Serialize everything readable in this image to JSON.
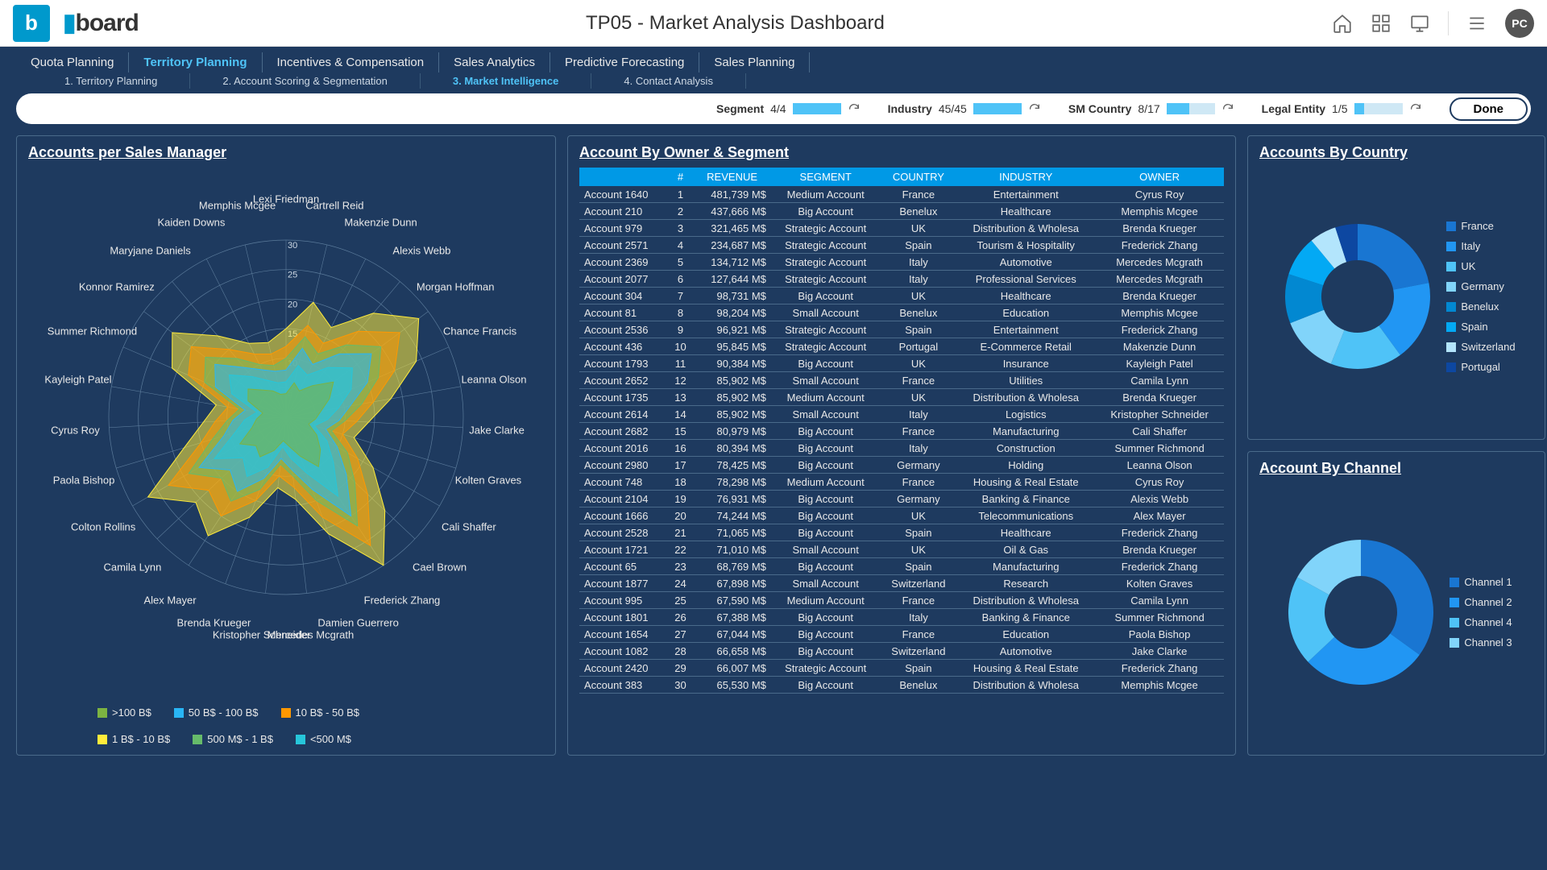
{
  "topbar": {
    "brand_b": "b",
    "brand_text": "board",
    "page_title": "TP05 - Market Analysis Dashboard",
    "avatar_initials": "PC"
  },
  "nav1": [
    {
      "label": "Quota Planning",
      "active": false
    },
    {
      "label": "Territory Planning",
      "active": true
    },
    {
      "label": "Incentives & Compensation",
      "active": false
    },
    {
      "label": "Sales Analytics",
      "active": false
    },
    {
      "label": "Predictive Forecasting",
      "active": false
    },
    {
      "label": "Sales Planning",
      "active": false
    }
  ],
  "nav2": [
    {
      "label": "1. Territory Planning",
      "active": false
    },
    {
      "label": "2. Account Scoring & Segmentation",
      "active": false
    },
    {
      "label": "3. Market Intelligence",
      "active": true
    },
    {
      "label": "4. Contact Analysis",
      "active": false
    }
  ],
  "filters": [
    {
      "label": "Segment",
      "count": "4/4",
      "fill": 1.0
    },
    {
      "label": "Industry",
      "count": "45/45",
      "fill": 1.0
    },
    {
      "label": "SM Country",
      "count": "8/17",
      "fill": 0.47
    },
    {
      "label": "Legal Entity",
      "count": "1/5",
      "fill": 0.2
    }
  ],
  "done_label": "Done",
  "panels": {
    "radar_title": "Accounts per Sales Manager",
    "table_title": "Account By Owner & Segment",
    "country_title": "Accounts By Country",
    "channel_title": "Account By Channel"
  },
  "radar": {
    "rings": [
      5,
      10,
      15,
      20,
      25,
      30
    ],
    "max": 30,
    "managers": [
      "Lexi Friedman",
      "Cartrell Reid",
      "Makenzie Dunn",
      "Alexis Webb",
      "Morgan Hoffman",
      "Chance Francis",
      "Leanna Olson",
      "Jake Clarke",
      "Kolten Graves",
      "Cali Shaffer",
      "Cael Brown",
      "Frederick Zhang",
      "Damien Guerrero",
      "Mercedes Mcgrath",
      "Kristopher Schneider",
      "Brenda Krueger",
      "Alex Mayer",
      "Camila Lynn",
      "Colton Rollins",
      "Paola Bishop",
      "Cyrus Roy",
      "Kayleigh Patel",
      "Summer Richmond",
      "Konnor Ramirez",
      "Maryjane Daniels",
      "Kaiden Downs",
      "Memphis Mcgee"
    ],
    "series": [
      {
        "name": ">100 B$",
        "color": "#7cb342",
        "values": [
          4,
          6,
          5,
          7,
          10,
          8,
          6,
          5,
          4,
          6,
          8,
          10,
          7,
          5,
          4,
          6,
          8,
          7,
          9,
          6,
          5,
          4,
          7,
          8,
          6,
          5,
          4
        ]
      },
      {
        "name": "50 B$ - 100 B$",
        "color": "#29b6f6",
        "values": [
          8,
          12,
          10,
          14,
          18,
          15,
          11,
          9,
          7,
          10,
          14,
          20,
          13,
          9,
          7,
          11,
          15,
          13,
          17,
          11,
          9,
          7,
          13,
          15,
          11,
          9,
          8
        ]
      },
      {
        "name": "10 B$ - 50 B$",
        "color": "#ff9800",
        "values": [
          12,
          16,
          14,
          19,
          24,
          20,
          15,
          12,
          10,
          14,
          19,
          26,
          18,
          12,
          10,
          15,
          20,
          18,
          23,
          15,
          12,
          10,
          18,
          20,
          15,
          12,
          11
        ]
      },
      {
        "name": "1 B$ - 10 B$",
        "color": "#ffeb3b",
        "values": [
          15,
          20,
          17,
          23,
          28,
          24,
          18,
          14,
          12,
          17,
          23,
          30,
          21,
          14,
          12,
          18,
          24,
          21,
          27,
          18,
          14,
          12,
          21,
          24,
          18,
          14,
          13
        ]
      },
      {
        "name": "500 M$ - 1 B$",
        "color": "#66bb6a",
        "values": [
          10,
          14,
          12,
          16,
          20,
          17,
          13,
          10,
          8,
          12,
          16,
          22,
          15,
          10,
          8,
          13,
          17,
          15,
          19,
          13,
          10,
          8,
          15,
          17,
          13,
          10,
          9
        ]
      },
      {
        "name": "<500 M$",
        "color": "#26c6da",
        "values": [
          6,
          9,
          8,
          11,
          14,
          12,
          9,
          7,
          5,
          8,
          11,
          16,
          10,
          7,
          5,
          9,
          12,
          10,
          14,
          9,
          7,
          5,
          10,
          12,
          9,
          7,
          6
        ]
      }
    ]
  },
  "table": {
    "columns": [
      "",
      "#",
      "REVENUE",
      "SEGMENT",
      "COUNTRY",
      "INDUSTRY",
      "OWNER"
    ],
    "rows": [
      [
        "Account 1640",
        "1",
        "481,739 M$",
        "Medium Account",
        "France",
        "Entertainment",
        "Cyrus Roy"
      ],
      [
        "Account 210",
        "2",
        "437,666 M$",
        "Big Account",
        "Benelux",
        "Healthcare",
        "Memphis Mcgee"
      ],
      [
        "Account 979",
        "3",
        "321,465 M$",
        "Strategic Account",
        "UK",
        "Distribution & Wholesa",
        "Brenda Krueger"
      ],
      [
        "Account 2571",
        "4",
        "234,687 M$",
        "Strategic Account",
        "Spain",
        "Tourism & Hospitality",
        "Frederick Zhang"
      ],
      [
        "Account 2369",
        "5",
        "134,712 M$",
        "Strategic Account",
        "Italy",
        "Automotive",
        "Mercedes Mcgrath"
      ],
      [
        "Account 2077",
        "6",
        "127,644 M$",
        "Strategic Account",
        "Italy",
        "Professional Services",
        "Mercedes Mcgrath"
      ],
      [
        "Account 304",
        "7",
        "98,731 M$",
        "Big Account",
        "UK",
        "Healthcare",
        "Brenda Krueger"
      ],
      [
        "Account 81",
        "8",
        "98,204 M$",
        "Small Account",
        "Benelux",
        "Education",
        "Memphis Mcgee"
      ],
      [
        "Account 2536",
        "9",
        "96,921 M$",
        "Strategic Account",
        "Spain",
        "Entertainment",
        "Frederick Zhang"
      ],
      [
        "Account 436",
        "10",
        "95,845 M$",
        "Strategic Account",
        "Portugal",
        "E-Commerce Retail",
        "Makenzie Dunn"
      ],
      [
        "Account 1793",
        "11",
        "90,384 M$",
        "Big Account",
        "UK",
        "Insurance",
        "Kayleigh Patel"
      ],
      [
        "Account 2652",
        "12",
        "85,902 M$",
        "Small Account",
        "France",
        "Utilities",
        "Camila Lynn"
      ],
      [
        "Account 1735",
        "13",
        "85,902 M$",
        "Medium Account",
        "UK",
        "Distribution & Wholesa",
        "Brenda Krueger"
      ],
      [
        "Account 2614",
        "14",
        "85,902 M$",
        "Small Account",
        "Italy",
        "Logistics",
        "Kristopher Schneider"
      ],
      [
        "Account 2682",
        "15",
        "80,979 M$",
        "Big Account",
        "France",
        "Manufacturing",
        "Cali Shaffer"
      ],
      [
        "Account 2016",
        "16",
        "80,394 M$",
        "Big Account",
        "Italy",
        "Construction",
        "Summer Richmond"
      ],
      [
        "Account 2980",
        "17",
        "78,425 M$",
        "Big Account",
        "Germany",
        "Holding",
        "Leanna Olson"
      ],
      [
        "Account 748",
        "18",
        "78,298 M$",
        "Medium Account",
        "France",
        "Housing & Real Estate",
        "Cyrus Roy"
      ],
      [
        "Account 2104",
        "19",
        "76,931 M$",
        "Big Account",
        "Germany",
        "Banking & Finance",
        "Alexis Webb"
      ],
      [
        "Account 1666",
        "20",
        "74,244 M$",
        "Big Account",
        "UK",
        "Telecommunications",
        "Alex Mayer"
      ],
      [
        "Account 2528",
        "21",
        "71,065 M$",
        "Big Account",
        "Spain",
        "Healthcare",
        "Frederick Zhang"
      ],
      [
        "Account 1721",
        "22",
        "71,010 M$",
        "Small Account",
        "UK",
        "Oil & Gas",
        "Brenda Krueger"
      ],
      [
        "Account 65",
        "23",
        "68,769 M$",
        "Big Account",
        "Spain",
        "Manufacturing",
        "Frederick Zhang"
      ],
      [
        "Account 1877",
        "24",
        "67,898 M$",
        "Small Account",
        "Switzerland",
        "Research",
        "Kolten Graves"
      ],
      [
        "Account 995",
        "25",
        "67,590 M$",
        "Medium Account",
        "France",
        "Distribution & Wholesa",
        "Camila Lynn"
      ],
      [
        "Account 1801",
        "26",
        "67,388 M$",
        "Big Account",
        "Italy",
        "Banking & Finance",
        "Summer Richmond"
      ],
      [
        "Account 1654",
        "27",
        "67,044 M$",
        "Big Account",
        "France",
        "Education",
        "Paola Bishop"
      ],
      [
        "Account 1082",
        "28",
        "66,658 M$",
        "Big Account",
        "Switzerland",
        "Automotive",
        "Jake Clarke"
      ],
      [
        "Account 2420",
        "29",
        "66,007 M$",
        "Strategic Account",
        "Spain",
        "Housing & Real Estate",
        "Frederick Zhang"
      ],
      [
        "Account 383",
        "30",
        "65,530 M$",
        "Big Account",
        "Benelux",
        "Distribution & Wholesa",
        "Memphis Mcgee"
      ]
    ]
  },
  "donut_country": {
    "items": [
      {
        "label": "France",
        "value": 22,
        "color": "#1976d2"
      },
      {
        "label": "Italy",
        "value": 18,
        "color": "#2196f3"
      },
      {
        "label": "UK",
        "value": 16,
        "color": "#4fc3f7"
      },
      {
        "label": "Germany",
        "value": 13,
        "color": "#81d4fa"
      },
      {
        "label": "Benelux",
        "value": 11,
        "color": "#0288d1"
      },
      {
        "label": "Spain",
        "value": 9,
        "color": "#03a9f4"
      },
      {
        "label": "Switzerland",
        "value": 6,
        "color": "#b3e5fc"
      },
      {
        "label": "Portugal",
        "value": 5,
        "color": "#0d47a1"
      }
    ]
  },
  "donut_channel": {
    "items": [
      {
        "label": "Channel 1",
        "value": 35,
        "color": "#1976d2"
      },
      {
        "label": "Channel 2",
        "value": 28,
        "color": "#2196f3"
      },
      {
        "label": "Channel 4",
        "value": 20,
        "color": "#4fc3f7"
      },
      {
        "label": "Channel 3",
        "value": 17,
        "color": "#81d4fa"
      }
    ]
  }
}
